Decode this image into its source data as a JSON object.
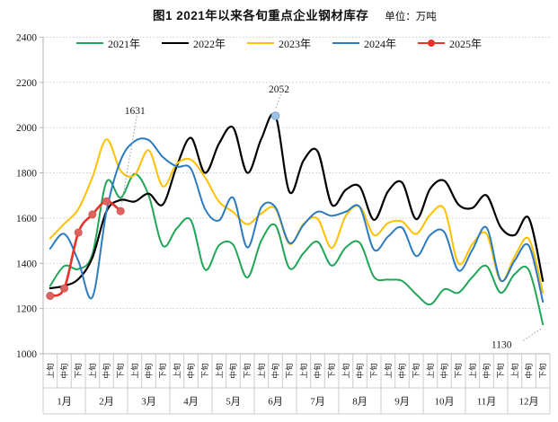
{
  "chart_data": {
    "type": "line",
    "title": "图1  2021年以来各旬重点企业钢材库存",
    "unit_label": "单位：万吨",
    "ylim": [
      1000,
      2400
    ],
    "yticks": [
      1000,
      1200,
      1400,
      1600,
      1800,
      2000,
      2200,
      2400
    ],
    "grid": "horizontal-dotted",
    "legend_position": "top-center",
    "months": [
      "1月",
      "2月",
      "3月",
      "4月",
      "5月",
      "6月",
      "7月",
      "8月",
      "9月",
      "10月",
      "11月",
      "12月"
    ],
    "periods": [
      "上旬",
      "中旬",
      "下旬"
    ],
    "colors": {
      "grid": "#cbcbcb",
      "axis": "#b3b3b3",
      "tick_text": "#1a1a1a",
      "annotation_text": "#1a1a1a",
      "annotation_line": "#999999"
    },
    "series": [
      {
        "name": "2021年",
        "color": "#21a657",
        "width": 2,
        "values": [
          1300,
          1388,
          1375,
          1440,
          1760,
          1690,
          1795,
          1700,
          1478,
          1555,
          1590,
          1372,
          1480,
          1482,
          1337,
          1500,
          1568,
          1378,
          1445,
          1495,
          1390,
          1470,
          1490,
          1340,
          1328,
          1322,
          1263,
          1218,
          1285,
          1270,
          1340,
          1388,
          1270,
          1352,
          1370,
          1130
        ]
      },
      {
        "name": "2022年",
        "color": "#000000",
        "width": 2.2,
        "values": [
          1290,
          1300,
          1330,
          1425,
          1630,
          1680,
          1673,
          1708,
          1660,
          1830,
          1955,
          1800,
          1930,
          2000,
          1800,
          1950,
          2052,
          1715,
          1855,
          1895,
          1660,
          1725,
          1738,
          1592,
          1718,
          1757,
          1595,
          1730,
          1765,
          1660,
          1645,
          1700,
          1560,
          1525,
          1600,
          1322
        ]
      },
      {
        "name": "2023年",
        "color": "#ffc000",
        "width": 2,
        "values": [
          1510,
          1575,
          1640,
          1780,
          1948,
          1810,
          1790,
          1900,
          1740,
          1840,
          1858,
          1780,
          1672,
          1627,
          1573,
          1620,
          1642,
          1485,
          1575,
          1597,
          1468,
          1610,
          1650,
          1525,
          1578,
          1585,
          1530,
          1615,
          1640,
          1400,
          1485,
          1530,
          1322,
          1430,
          1508,
          1270
        ]
      },
      {
        "name": "2024年",
        "color": "#2b7bc0",
        "width": 2,
        "values": [
          1465,
          1530,
          1410,
          1250,
          1630,
          1855,
          1940,
          1945,
          1870,
          1828,
          1818,
          1640,
          1590,
          1690,
          1470,
          1648,
          1648,
          1490,
          1570,
          1628,
          1610,
          1628,
          1648,
          1460,
          1518,
          1558,
          1432,
          1525,
          1538,
          1368,
          1460,
          1558,
          1325,
          1412,
          1478,
          1230
        ]
      },
      {
        "name": "2025年",
        "color": "#e8322a",
        "width": 2.6,
        "marker": true,
        "marker_fill": "#dc6360",
        "marker_stroke": "#c94f44",
        "values": [
          1256,
          1289,
          1536,
          1616,
          1674,
          1631,
          null,
          null,
          null,
          null,
          null,
          null,
          null,
          null,
          null,
          null,
          null,
          null,
          null,
          null,
          null,
          null,
          null,
          null,
          null,
          null,
          null,
          null,
          null,
          null,
          null,
          null,
          null,
          null,
          null,
          null
        ]
      }
    ],
    "annotations": [
      {
        "label": "1631",
        "series": 4,
        "point": 5,
        "text_dx": 16,
        "text_dy": -112,
        "marker_fill": null,
        "marker_stroke": null
      },
      {
        "label": "2052",
        "series": 1,
        "point": 16,
        "text_dx": 4,
        "text_dy": -30,
        "marker_fill": "#9dc3e6",
        "marker_stroke": "#74a9d8"
      },
      {
        "label": "1130",
        "series": 0,
        "point": 35,
        "text_dx": -46,
        "text_dy": 22,
        "marker_fill": null,
        "marker_stroke": null
      }
    ]
  }
}
